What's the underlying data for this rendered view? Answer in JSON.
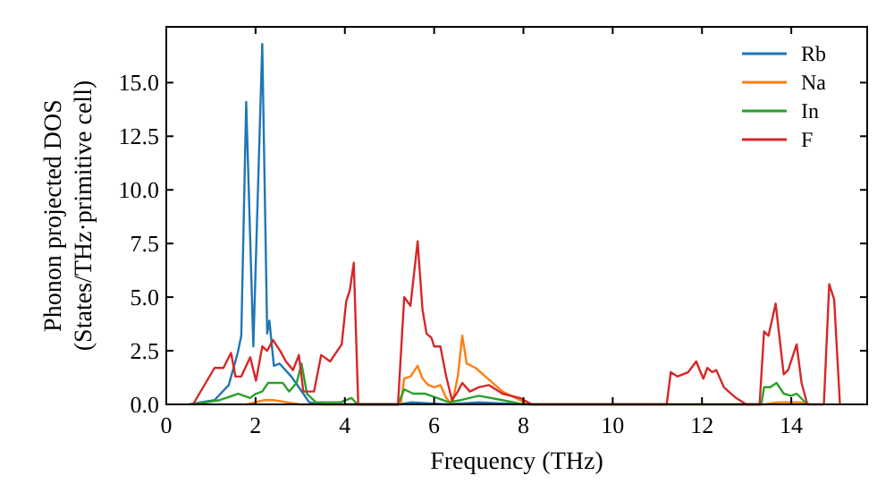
{
  "chart_data": {
    "type": "line",
    "xlabel": "Frequency (THz)",
    "ylabel": "Phonon projected DOS\n(States/THz·primitive cell)",
    "xlim": [
      0,
      15.7
    ],
    "ylim": [
      0,
      17.6
    ],
    "xticks": [
      0,
      2,
      4,
      6,
      8,
      10,
      12,
      14
    ],
    "yticks": [
      {
        "value": 0,
        "label": "0.0"
      },
      {
        "value": 2.5,
        "label": "2.5"
      },
      {
        "value": 5,
        "label": "5.0"
      },
      {
        "value": 7.5,
        "label": "7.5"
      },
      {
        "value": 10,
        "label": "10.0"
      },
      {
        "value": 12.5,
        "label": "12.5"
      },
      {
        "value": 15,
        "label": "15.0"
      }
    ],
    "grid": false,
    "legend": "top right",
    "marker": "none",
    "line_style": "solid",
    "series": [
      {
        "name": "Rb",
        "color": "#1f77b4",
        "x": [
          0.5,
          1.08,
          1.4,
          1.6,
          1.68,
          1.79,
          1.95,
          2.15,
          2.26,
          2.31,
          2.41,
          2.54,
          2.8,
          3.07,
          3.2,
          3.5,
          5.2,
          5.5,
          6.3,
          7,
          8
        ],
        "values": [
          0,
          0.2,
          0.9,
          2.4,
          3.2,
          14.1,
          2.7,
          16.8,
          3.3,
          3.9,
          1.8,
          1.9,
          1.3,
          0.5,
          0.1,
          0,
          0,
          0.1,
          0,
          0.1,
          0
        ]
      },
      {
        "name": "Na",
        "color": "#ff7f0e",
        "x": [
          1.8,
          2.2,
          2.4,
          2.7,
          3.0,
          5.25,
          5.33,
          5.47,
          5.63,
          5.74,
          5.87,
          6.0,
          6.14,
          6.27,
          6.4,
          6.53,
          6.63,
          6.73,
          6.93,
          7.2,
          7.53,
          7.92,
          8.12,
          13.4,
          13.7,
          14.2,
          14.4
        ],
        "values": [
          0,
          0.2,
          0.2,
          0.1,
          0,
          0,
          1.2,
          1.3,
          1.8,
          1.2,
          0.9,
          0.8,
          0.9,
          0.3,
          0,
          1.3,
          3.2,
          1.9,
          1.7,
          1.2,
          0.6,
          0.2,
          0,
          0,
          0.1,
          0.1,
          0
        ]
      },
      {
        "name": "In",
        "color": "#2ca02c",
        "x": [
          0.6,
          1.2,
          1.61,
          1.88,
          2.01,
          2.15,
          2.28,
          2.61,
          2.75,
          2.92,
          3.03,
          3.15,
          3.35,
          3.9,
          4.15,
          4.28,
          5.19,
          5.33,
          5.53,
          5.8,
          6.07,
          6.33,
          6.6,
          7.0,
          7.53,
          8.0,
          13.33,
          13.39,
          13.53,
          13.67,
          13.83,
          13.99,
          14.12,
          14.36
        ],
        "values": [
          0,
          0.2,
          0.5,
          0.3,
          0.5,
          0.6,
          1.0,
          1.0,
          0.6,
          1.0,
          1.9,
          0.5,
          0.1,
          0.1,
          0.3,
          0,
          0,
          0.7,
          0.5,
          0.5,
          0.3,
          0.1,
          0.2,
          0.4,
          0.2,
          0,
          0,
          0.8,
          0.8,
          1.0,
          0.5,
          0.4,
          0.5,
          0
        ]
      },
      {
        "name": "F",
        "color": "#d62728",
        "x": [
          0.6,
          1.08,
          1.28,
          1.45,
          1.55,
          1.68,
          1.88,
          2.01,
          2.15,
          2.26,
          2.39,
          2.55,
          2.68,
          2.84,
          2.97,
          3.07,
          3.31,
          3.47,
          3.67,
          3.93,
          4.03,
          4.11,
          4.2,
          4.3,
          5.19,
          5.33,
          5.47,
          5.63,
          5.74,
          5.83,
          5.94,
          6.0,
          6.14,
          6.27,
          6.4,
          6.53,
          6.63,
          6.8,
          7.0,
          7.23,
          7.53,
          7.92,
          8.19,
          11.21,
          11.3,
          11.45,
          11.69,
          11.87,
          12.03,
          12.12,
          12.23,
          12.32,
          12.49,
          12.76,
          12.99,
          13.29,
          13.39,
          13.49,
          13.65,
          13.83,
          13.93,
          14.12,
          14.23,
          14.36,
          14.73,
          14.85,
          14.96,
          15.09
        ],
        "values": [
          0,
          1.7,
          1.7,
          2.4,
          1.3,
          1.3,
          2.2,
          1.1,
          2.7,
          2.5,
          3.0,
          2.5,
          2.0,
          1.6,
          2.3,
          0.6,
          0.6,
          2.3,
          2.0,
          2.8,
          4.8,
          5.3,
          6.6,
          0,
          0,
          5.0,
          4.6,
          7.6,
          4.4,
          3.3,
          3.1,
          2.7,
          2.7,
          1.3,
          0.2,
          0.6,
          1.0,
          0.6,
          0.8,
          0.9,
          0.5,
          0.3,
          0,
          0,
          1.5,
          1.3,
          1.5,
          2.0,
          1.2,
          1.7,
          1.5,
          1.6,
          0.8,
          0.3,
          0,
          0,
          3.4,
          3.2,
          4.7,
          1.4,
          1.6,
          2.8,
          1.0,
          0,
          0,
          5.6,
          4.9,
          0
        ]
      }
    ]
  }
}
